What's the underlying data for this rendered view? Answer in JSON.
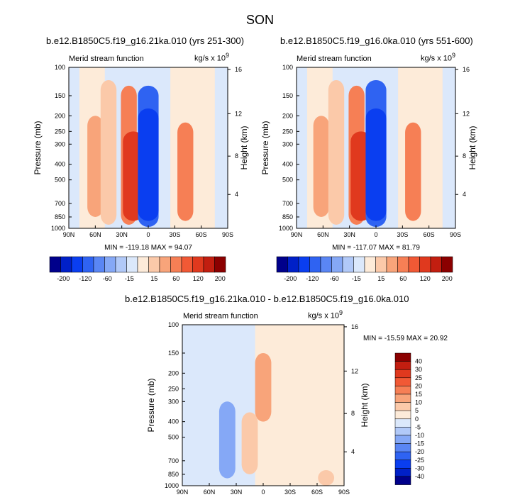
{
  "figure": {
    "title": "SON",
    "units_label": "kg/s x 10",
    "units_exp": "9"
  },
  "colors": {
    "diverging_top": [
      "#00008b",
      "#0020c8",
      "#0a3ef0",
      "#2f63f2",
      "#5a86f4",
      "#85a8f6",
      "#b1c9f8",
      "#dbe8fb",
      "#fdebd9",
      "#fbc9a9",
      "#f8a47a",
      "#f67f55",
      "#f15935",
      "#e0391e",
      "#c21e10",
      "#8b0000"
    ],
    "diverging_bottom": [
      "#00008b",
      "#0020c8",
      "#0a3ef0",
      "#2f63f2",
      "#5a86f4",
      "#85a8f6",
      "#b1c9f8",
      "#dbe8fb",
      "#fdebd9",
      "#fbc9a9",
      "#f8a47a",
      "#f67f55",
      "#f15935",
      "#e0391e",
      "#c21e10",
      "#8b0000"
    ]
  },
  "chart_data": [
    {
      "type": "heatmap",
      "title": "b.e12.B1850C5.f19_g16.21ka.010 (yrs 251-300)",
      "field_label": "Merid stream function",
      "units": "kg/s x 10^9",
      "ylabel": "Pressure (mb)",
      "y2label": "Height (km)",
      "xticks": [
        "90N",
        "60N",
        "30N",
        "0",
        "30S",
        "60S",
        "90S"
      ],
      "yticks": [
        "100",
        "150",
        "200",
        "250",
        "300",
        "400",
        "500",
        "700",
        "850",
        "1000"
      ],
      "y2ticks": [
        "4",
        "8",
        "12",
        "16"
      ],
      "stats": "MIN = -119.18   MAX = 94.07",
      "min": -119.18,
      "max": 94.07,
      "colorbar_labels": [
        "-200",
        "-120",
        "-60",
        "-15",
        "15",
        "60",
        "120",
        "200"
      ],
      "levels": [
        -200,
        -160,
        -120,
        -90,
        -60,
        -30,
        -15,
        -5,
        5,
        15,
        30,
        60,
        90,
        120,
        160,
        200
      ],
      "cells": [
        {
          "lat": 60,
          "lo": 200,
          "hi": 850,
          "level": 2
        },
        {
          "lat": 45,
          "lo": 120,
          "hi": 950,
          "level": 1
        },
        {
          "lat": 22,
          "lo": 130,
          "hi": 950,
          "level": 3
        },
        {
          "lat": 17,
          "lo": 250,
          "hi": 900,
          "level": 5
        },
        {
          "lat": 0,
          "lo": 130,
          "hi": 980,
          "level": -5
        },
        {
          "lat": 0,
          "lo": 180,
          "hi": 900,
          "level": -6
        },
        {
          "lat": -42,
          "lo": 220,
          "hi": 900,
          "level": 3
        }
      ]
    },
    {
      "type": "heatmap",
      "title": "b.e12.B1850C5.f19_g16.0ka.010 (yrs 551-600)",
      "field_label": "Merid stream function",
      "units": "kg/s x 10^9",
      "ylabel": "Pressure (mb)",
      "y2label": "Height (km)",
      "xticks": [
        "90N",
        "60N",
        "30N",
        "0",
        "30S",
        "60S",
        "90S"
      ],
      "yticks": [
        "100",
        "150",
        "200",
        "250",
        "300",
        "400",
        "500",
        "700",
        "850",
        "1000"
      ],
      "y2ticks": [
        "4",
        "8",
        "12",
        "16"
      ],
      "stats": "MIN = -117.07   MAX = 81.79",
      "min": -117.07,
      "max": 81.79,
      "colorbar_labels": [
        "-200",
        "-120",
        "-60",
        "-15",
        "15",
        "60",
        "120",
        "200"
      ],
      "levels": [
        -200,
        -160,
        -120,
        -90,
        -60,
        -30,
        -15,
        -5,
        5,
        15,
        30,
        60,
        90,
        120,
        160,
        200
      ],
      "cells": [
        {
          "lat": 62,
          "lo": 200,
          "hi": 850,
          "level": 2
        },
        {
          "lat": 45,
          "lo": 120,
          "hi": 950,
          "level": 1
        },
        {
          "lat": 22,
          "lo": 130,
          "hi": 950,
          "level": 3
        },
        {
          "lat": 17,
          "lo": 250,
          "hi": 900,
          "level": 5
        },
        {
          "lat": 0,
          "lo": 120,
          "hi": 980,
          "level": -5
        },
        {
          "lat": 0,
          "lo": 180,
          "hi": 900,
          "level": -6
        },
        {
          "lat": -42,
          "lo": 220,
          "hi": 900,
          "level": 3
        }
      ]
    },
    {
      "type": "heatmap",
      "title": "b.e12.B1850C5.f19_g16.21ka.010 - b.e12.B1850C5.f19_g16.0ka.010",
      "field_label": "Merid stream function",
      "units": "kg/s x 10^9",
      "ylabel": "Pressure (mb)",
      "y2label": "Height (km)",
      "xticks": [
        "90N",
        "60N",
        "30N",
        "0",
        "30S",
        "60S",
        "90S"
      ],
      "yticks": [
        "100",
        "150",
        "200",
        "250",
        "300",
        "400",
        "500",
        "700",
        "850",
        "1000"
      ],
      "y2ticks": [
        "4",
        "8",
        "12",
        "16"
      ],
      "stats": "MIN = -15.59   MAX = 20.92",
      "min": -15.59,
      "max": 20.92,
      "colorbar_labels": [
        "40",
        "30",
        "25",
        "20",
        "15",
        "10",
        "5",
        "0",
        "-5",
        "-10",
        "-15",
        "-20",
        "-25",
        "-30",
        "-40"
      ],
      "levels": [
        -40,
        -30,
        -25,
        -20,
        -15,
        -10,
        -5,
        0,
        5,
        10,
        15,
        20,
        25,
        30,
        40
      ],
      "cells": [
        {
          "lat": 0,
          "lo": 150,
          "hi": 400,
          "level": 3
        },
        {
          "lat": 15,
          "lo": 350,
          "hi": 850,
          "level": 2
        },
        {
          "lat": 40,
          "lo": 300,
          "hi": 900,
          "level": -2
        },
        {
          "lat": -70,
          "lo": 800,
          "hi": 1000,
          "level": 2
        }
      ]
    }
  ]
}
